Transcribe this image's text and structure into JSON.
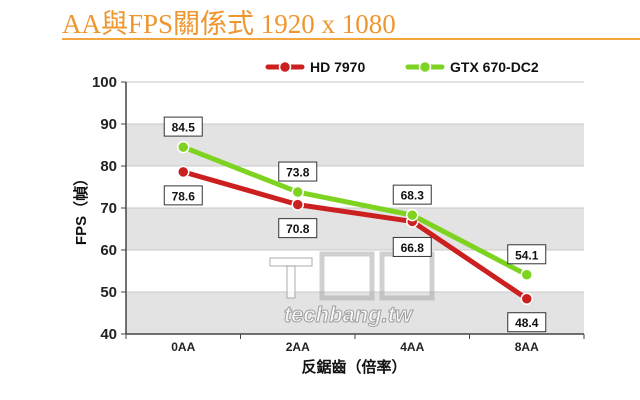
{
  "title": "AA與FPS關係式 1920 x 1080",
  "watermark": {
    "text": "techbang.tw",
    "logo": "T客邦"
  },
  "colors": {
    "HD 7970": "#cc1f1f",
    "GTX 670-DC2": "#7ed321",
    "band": "#e3e3e3",
    "title": "#f0962e"
  },
  "chart_data": {
    "type": "line",
    "categories": [
      "0AA",
      "2AA",
      "4AA",
      "8AA"
    ],
    "series": [
      {
        "name": "HD 7970",
        "values": [
          78.6,
          70.8,
          66.8,
          48.4
        ]
      },
      {
        "name": "GTX 670-DC2",
        "values": [
          84.5,
          73.8,
          68.3,
          54.1
        ]
      }
    ],
    "xlabel": "反鋸齒（倍率）",
    "ylabel": "FPS（幀）",
    "ylim": [
      40,
      100
    ],
    "yticks": [
      40,
      50,
      60,
      70,
      80,
      90,
      100
    ],
    "grid": true,
    "legend": "top-right"
  }
}
